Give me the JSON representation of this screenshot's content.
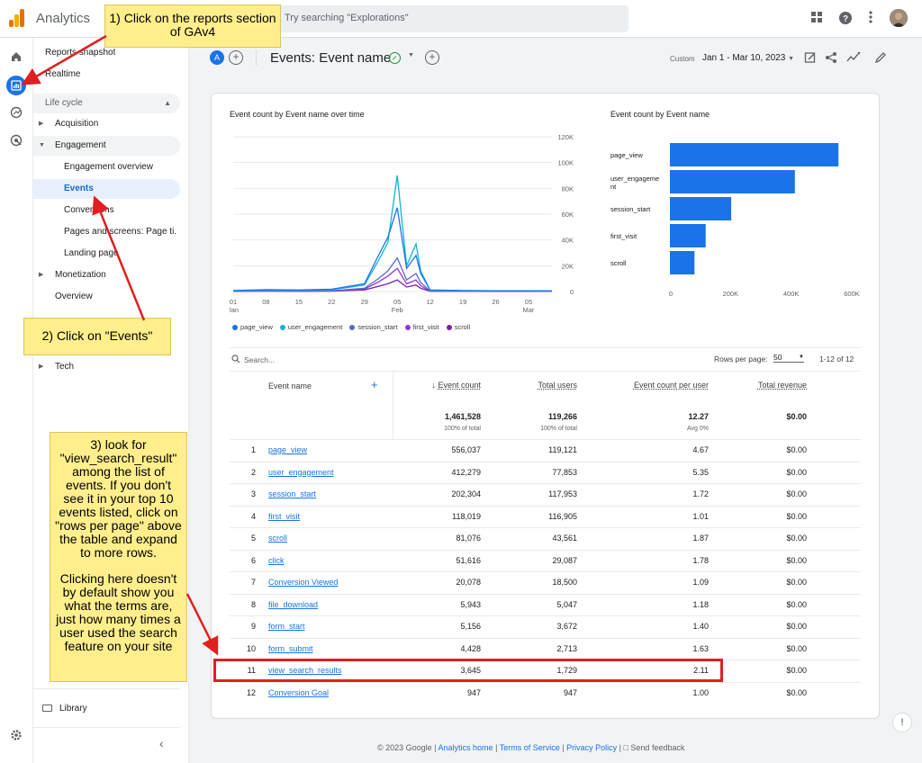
{
  "app": {
    "title": "Analytics",
    "search_placeholder": "Try searching \"Explorations\""
  },
  "nav": {
    "reports_snapshot": "Reports snapshot",
    "realtime": "Realtime",
    "lifecycle": "Life cycle",
    "acquisition": "Acquisition",
    "engagement": "Engagement",
    "engagement_overview": "Engagement overview",
    "events": "Events",
    "conversions": "Conversions",
    "pages_screens": "Pages and screens: Page ti...",
    "landing_page": "Landing page",
    "monetization": "Monetization",
    "overview": "Overview",
    "tech": "Tech",
    "library": "Library"
  },
  "header": {
    "badge": "A",
    "title": "Events: Event name",
    "date_custom": "Custom",
    "date_range": "Jan 1 - Mar 10, 2023"
  },
  "line_chart": {
    "title": "Event count by Event name over time",
    "y_ticks": [
      "120K",
      "100K",
      "80K",
      "60K",
      "40K",
      "20K",
      "0"
    ],
    "x_ticks": [
      {
        "day": "01",
        "month": "Jan"
      },
      {
        "day": "08",
        "month": ""
      },
      {
        "day": "15",
        "month": ""
      },
      {
        "day": "22",
        "month": ""
      },
      {
        "day": "29",
        "month": ""
      },
      {
        "day": "05",
        "month": "Feb"
      },
      {
        "day": "12",
        "month": ""
      },
      {
        "day": "19",
        "month": ""
      },
      {
        "day": "26",
        "month": ""
      },
      {
        "day": "05",
        "month": "Mar"
      }
    ]
  },
  "bar_chart": {
    "title": "Event count by Event name",
    "x_ticks": [
      "0",
      "200K",
      "400K",
      "600K"
    ]
  },
  "chart_data": [
    {
      "type": "line",
      "title": "Event count by Event name over time",
      "x": [
        "Jan 1",
        "Jan 8",
        "Jan 15",
        "Jan 22",
        "Jan 29",
        "Feb 1",
        "Feb 3",
        "Feb 5",
        "Feb 7",
        "Feb 9",
        "Feb 10",
        "Feb 12",
        "Feb 19",
        "Feb 26",
        "Mar 5",
        "Mar 10"
      ],
      "ylim": [
        0,
        120000
      ],
      "series": [
        {
          "name": "page_view",
          "color": "#1a73e8",
          "values": [
            800,
            1500,
            1200,
            1800,
            6000,
            28000,
            42000,
            65000,
            18000,
            28000,
            14000,
            1200,
            800,
            600,
            600,
            500
          ]
        },
        {
          "name": "user_engagement",
          "color": "#12b5cb",
          "values": [
            600,
            1100,
            900,
            1400,
            5000,
            24000,
            38000,
            90000,
            20000,
            37000,
            16000,
            900,
            600,
            500,
            500,
            400
          ]
        },
        {
          "name": "session_start",
          "color": "#5c6bc0",
          "values": [
            300,
            500,
            400,
            600,
            2500,
            10000,
            16000,
            26000,
            9000,
            14000,
            7000,
            400,
            300,
            250,
            250,
            200
          ]
        },
        {
          "name": "first_visit",
          "color": "#9334e6",
          "values": [
            200,
            350,
            300,
            450,
            1800,
            7500,
            12000,
            18000,
            6000,
            9000,
            4500,
            300,
            220,
            180,
            180,
            150
          ]
        },
        {
          "name": "scroll",
          "color": "#7b1fa2",
          "values": [
            150,
            250,
            200,
            300,
            1200,
            4000,
            6000,
            9000,
            3500,
            5000,
            2500,
            200,
            150,
            120,
            120,
            100
          ]
        }
      ]
    },
    {
      "type": "bar",
      "title": "Event count by Event name",
      "categories": [
        "page_view",
        "user_engageme nt",
        "session_start",
        "first_visit",
        "scroll"
      ],
      "values": [
        556037,
        412279,
        202304,
        118019,
        81076
      ],
      "xlim": [
        0,
        600000
      ],
      "color": "#1a73e8"
    }
  ],
  "legend": [
    "page_view",
    "user_engagement",
    "session_start",
    "first_visit",
    "scroll"
  ],
  "table": {
    "search_placeholder": "Search...",
    "rows_per_page_label": "Rows per page:",
    "rows_per_page_value": "50",
    "pagination": "1-12 of 12",
    "columns": [
      "Event name",
      "Event count",
      "Total users",
      "Event count per user",
      "Total revenue"
    ],
    "totals": {
      "event_count": "1,461,528",
      "event_pct": "100% of total",
      "users": "119,266",
      "users_pct": "100% of total",
      "per_user": "12.27",
      "per_user_avg": "Avg 0%",
      "revenue": "$0.00"
    },
    "rows": [
      {
        "n": "1",
        "name": "page_view",
        "count": "556,037",
        "users": "119,121",
        "per": "4.67",
        "rev": "$0.00"
      },
      {
        "n": "2",
        "name": "user_engagement",
        "count": "412,279",
        "users": "77,853",
        "per": "5.35",
        "rev": "$0.00"
      },
      {
        "n": "3",
        "name": "session_start",
        "count": "202,304",
        "users": "117,953",
        "per": "1.72",
        "rev": "$0.00"
      },
      {
        "n": "4",
        "name": "first_visit",
        "count": "118,019",
        "users": "116,905",
        "per": "1.01",
        "rev": "$0.00"
      },
      {
        "n": "5",
        "name": "scroll",
        "count": "81,076",
        "users": "43,561",
        "per": "1.87",
        "rev": "$0.00"
      },
      {
        "n": "6",
        "name": "click",
        "count": "51,616",
        "users": "29,087",
        "per": "1.78",
        "rev": "$0.00"
      },
      {
        "n": "7",
        "name": "Conversion Viewed",
        "count": "20,078",
        "users": "18,500",
        "per": "1.09",
        "rev": "$0.00"
      },
      {
        "n": "8",
        "name": "file_download",
        "count": "5,943",
        "users": "5,047",
        "per": "1.18",
        "rev": "$0.00"
      },
      {
        "n": "9",
        "name": "form_start",
        "count": "5,156",
        "users": "3,672",
        "per": "1.40",
        "rev": "$0.00"
      },
      {
        "n": "10",
        "name": "form_submit",
        "count": "4,428",
        "users": "2,713",
        "per": "1.63",
        "rev": "$0.00"
      },
      {
        "n": "11",
        "name": "view_search_results",
        "count": "3,645",
        "users": "1,729",
        "per": "2.11",
        "rev": "$0.00"
      },
      {
        "n": "12",
        "name": "Conversion Goal",
        "count": "947",
        "users": "947",
        "per": "1.00",
        "rev": "$0.00"
      }
    ]
  },
  "footer": {
    "copyright": "© 2023 Google | ",
    "home": "Analytics home",
    "sep1": " | ",
    "terms": "Terms of Service",
    "sep2": " | ",
    "privacy": "Privacy Policy",
    "sep3": " | ",
    "feedback": "Send feedback"
  },
  "annotations": {
    "step1": "1) Click on the reports section of GAv4",
    "step2": "2) Click on \"Events\"",
    "step3a": "3) look for \"view_search_result\" among the list of events. If you don't see it in your top 10 events listed, click on \"rows per page\" above the table and expand to more rows.",
    "step3b": "Clicking here doesn't by default show you what the terms are, just how many times a user used the search feature on your site"
  }
}
